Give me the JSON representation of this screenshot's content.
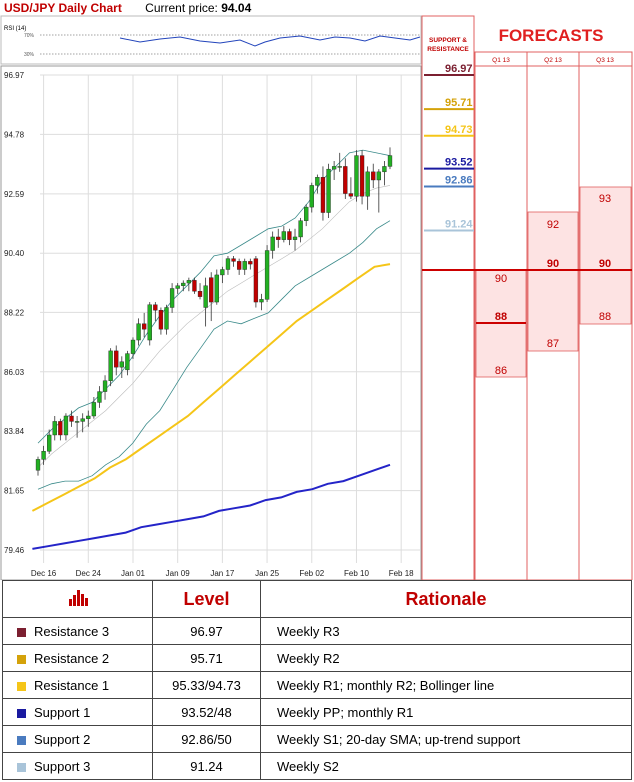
{
  "header": {
    "title": "USD/JPY Daily Chart",
    "price_label": "Current price:",
    "price_value": "94.04"
  },
  "rsi": {
    "label": "RSI (14)",
    "levels": [
      "70%",
      "30%"
    ]
  },
  "side": {
    "sr_heading": [
      "SUPPORT &",
      "RESISTANCE"
    ],
    "forecasts_heading": "FORECASTS",
    "quarters": [
      "Q1 13",
      "Q2 13",
      "Q3 13"
    ],
    "forecast_values": {
      "q1": [
        "90",
        "88",
        "86"
      ],
      "q2": [
        "92",
        "90",
        "87"
      ],
      "q3": [
        "93",
        "90",
        "88"
      ]
    }
  },
  "colors": {
    "accent_red": "#c00000",
    "r3": "#7b1f30",
    "r2": "#d4a20a",
    "r1": "#f5c518",
    "s1": "#1a1aa0",
    "s2": "#4a7bbf",
    "s3": "#a9c4d9",
    "bull": "#22b022",
    "bear": "#c00000",
    "sma_fast": "#f5c518",
    "sma_slow": "#2424c8",
    "bollinger": "#3a8a8a"
  },
  "chart_data": {
    "type": "candlestick",
    "title": "USD/JPY Daily Chart",
    "ylim": [
      79.46,
      96.97
    ],
    "y_ticks": [
      "96.97",
      "94.78",
      "92.59",
      "90.40",
      "88.22",
      "86.03",
      "83.84",
      "81.65",
      "79.46"
    ],
    "x_ticks": [
      "Dec 16",
      "Dec 24",
      "Jan 01",
      "Jan 09",
      "Jan 17",
      "Jan 25",
      "Feb 02",
      "Feb 10",
      "Feb 18"
    ],
    "x_tick_index": [
      1,
      9,
      17,
      25,
      33,
      41,
      49,
      57,
      65
    ],
    "candles": [
      {
        "o": 82.4,
        "h": 82.9,
        "l": 82.2,
        "c": 82.8
      },
      {
        "o": 82.8,
        "h": 83.3,
        "l": 82.6,
        "c": 83.1
      },
      {
        "o": 83.1,
        "h": 83.9,
        "l": 83.0,
        "c": 83.7
      },
      {
        "o": 83.7,
        "h": 84.4,
        "l": 83.5,
        "c": 84.2
      },
      {
        "o": 84.2,
        "h": 84.3,
        "l": 83.5,
        "c": 83.7
      },
      {
        "o": 83.7,
        "h": 84.5,
        "l": 83.5,
        "c": 84.4
      },
      {
        "o": 84.4,
        "h": 84.6,
        "l": 84.0,
        "c": 84.2
      },
      {
        "o": 84.2,
        "h": 84.4,
        "l": 83.6,
        "c": 84.2
      },
      {
        "o": 84.2,
        "h": 84.5,
        "l": 83.8,
        "c": 84.3
      },
      {
        "o": 84.3,
        "h": 84.6,
        "l": 84.0,
        "c": 84.4
      },
      {
        "o": 84.4,
        "h": 85.1,
        "l": 84.3,
        "c": 84.9
      },
      {
        "o": 84.9,
        "h": 85.5,
        "l": 84.7,
        "c": 85.3
      },
      {
        "o": 85.3,
        "h": 85.9,
        "l": 85.0,
        "c": 85.7
      },
      {
        "o": 85.7,
        "h": 86.9,
        "l": 85.5,
        "c": 86.8
      },
      {
        "o": 86.8,
        "h": 87.0,
        "l": 85.9,
        "c": 86.2
      },
      {
        "o": 86.2,
        "h": 86.6,
        "l": 85.8,
        "c": 86.4
      },
      {
        "o": 86.1,
        "h": 86.8,
        "l": 85.9,
        "c": 86.7
      },
      {
        "o": 86.7,
        "h": 87.3,
        "l": 86.5,
        "c": 87.2
      },
      {
        "o": 87.2,
        "h": 88.0,
        "l": 87.0,
        "c": 87.8
      },
      {
        "o": 87.8,
        "h": 88.2,
        "l": 87.3,
        "c": 87.6
      },
      {
        "o": 87.2,
        "h": 88.6,
        "l": 87.0,
        "c": 88.5
      },
      {
        "o": 88.5,
        "h": 88.6,
        "l": 87.9,
        "c": 88.3
      },
      {
        "o": 88.3,
        "h": 88.4,
        "l": 87.4,
        "c": 87.6
      },
      {
        "o": 87.6,
        "h": 88.5,
        "l": 87.4,
        "c": 88.4
      },
      {
        "o": 88.4,
        "h": 89.3,
        "l": 88.2,
        "c": 89.1
      },
      {
        "o": 89.1,
        "h": 89.3,
        "l": 88.9,
        "c": 89.2
      },
      {
        "o": 89.2,
        "h": 89.4,
        "l": 89.0,
        "c": 89.3
      },
      {
        "o": 89.3,
        "h": 89.5,
        "l": 89.0,
        "c": 89.4
      },
      {
        "o": 89.4,
        "h": 89.5,
        "l": 88.9,
        "c": 89.0
      },
      {
        "o": 89.0,
        "h": 89.3,
        "l": 88.7,
        "c": 88.8
      },
      {
        "o": 88.4,
        "h": 89.5,
        "l": 87.7,
        "c": 89.2
      },
      {
        "o": 89.5,
        "h": 89.7,
        "l": 87.9,
        "c": 88.6
      },
      {
        "o": 88.6,
        "h": 89.8,
        "l": 88.5,
        "c": 89.6
      },
      {
        "o": 89.6,
        "h": 89.9,
        "l": 89.3,
        "c": 89.8
      },
      {
        "o": 89.8,
        "h": 90.3,
        "l": 89.6,
        "c": 90.2
      },
      {
        "o": 90.2,
        "h": 90.3,
        "l": 89.9,
        "c": 90.1
      },
      {
        "o": 90.1,
        "h": 90.2,
        "l": 89.6,
        "c": 89.8
      },
      {
        "o": 89.8,
        "h": 90.2,
        "l": 89.6,
        "c": 90.1
      },
      {
        "o": 90.1,
        "h": 90.2,
        "l": 89.8,
        "c": 90.0
      },
      {
        "o": 90.2,
        "h": 90.3,
        "l": 88.4,
        "c": 88.6
      },
      {
        "o": 88.6,
        "h": 88.9,
        "l": 88.3,
        "c": 88.7
      },
      {
        "o": 88.7,
        "h": 90.7,
        "l": 88.6,
        "c": 90.5
      },
      {
        "o": 90.5,
        "h": 91.2,
        "l": 90.2,
        "c": 91.0
      },
      {
        "o": 91.0,
        "h": 91.3,
        "l": 90.6,
        "c": 90.9
      },
      {
        "o": 90.9,
        "h": 91.4,
        "l": 90.8,
        "c": 91.2
      },
      {
        "o": 91.2,
        "h": 91.3,
        "l": 90.7,
        "c": 90.9
      },
      {
        "o": 90.9,
        "h": 91.3,
        "l": 90.5,
        "c": 91.0
      },
      {
        "o": 91.0,
        "h": 91.7,
        "l": 90.8,
        "c": 91.6
      },
      {
        "o": 91.6,
        "h": 92.2,
        "l": 91.4,
        "c": 92.1
      },
      {
        "o": 92.1,
        "h": 93.0,
        "l": 91.9,
        "c": 92.9
      },
      {
        "o": 92.9,
        "h": 93.3,
        "l": 92.6,
        "c": 93.2
      },
      {
        "o": 93.2,
        "h": 93.6,
        "l": 91.6,
        "c": 91.9
      },
      {
        "o": 91.9,
        "h": 93.7,
        "l": 91.7,
        "c": 93.5
      },
      {
        "o": 93.5,
        "h": 93.8,
        "l": 93.1,
        "c": 93.6
      },
      {
        "o": 93.6,
        "h": 94.1,
        "l": 93.4,
        "c": 93.6
      },
      {
        "o": 93.6,
        "h": 93.9,
        "l": 92.4,
        "c": 92.6
      },
      {
        "o": 92.6,
        "h": 93.2,
        "l": 92.4,
        "c": 92.5
      },
      {
        "o": 92.5,
        "h": 94.2,
        "l": 92.3,
        "c": 94.0
      },
      {
        "o": 94.0,
        "h": 94.2,
        "l": 92.2,
        "c": 92.5
      },
      {
        "o": 92.5,
        "h": 93.6,
        "l": 92.0,
        "c": 93.4
      },
      {
        "o": 93.4,
        "h": 93.7,
        "l": 92.8,
        "c": 93.1
      },
      {
        "o": 93.1,
        "h": 93.5,
        "l": 91.9,
        "c": 93.4
      },
      {
        "o": 93.4,
        "h": 93.8,
        "l": 92.9,
        "c": 93.6
      },
      {
        "o": 93.6,
        "h": 94.3,
        "l": 93.5,
        "c": 94.0
      }
    ],
    "series": [
      {
        "name": "",
        "values": [
          80.9,
          81.2,
          81.5,
          81.8,
          82.1,
          82.5,
          82.8,
          83.2,
          83.6,
          84.0,
          84.4,
          84.9,
          85.4,
          85.9,
          86.4,
          86.9,
          87.4,
          87.9,
          88.3,
          88.7,
          89.1,
          89.5,
          89.9,
          90.0
        ]
      },
      {
        "name": "",
        "values": [
          79.5,
          79.6,
          79.7,
          79.8,
          79.9,
          80.0,
          80.1,
          80.3,
          80.4,
          80.5,
          80.6,
          80.7,
          80.9,
          81.0,
          81.1,
          81.3,
          81.4,
          81.6,
          81.7,
          81.9,
          82.0,
          82.2,
          82.4,
          82.6
        ]
      }
    ],
    "bollinger": {
      "upper": [
        83.4,
        83.9,
        84.3,
        84.7,
        84.9,
        85.4,
        85.9,
        86.6,
        87.4,
        88.1,
        88.7,
        89.2,
        89.7,
        90.3,
        90.4,
        90.7,
        91.0,
        91.3,
        91.4,
        91.7,
        92.3,
        93.1,
        93.6,
        94.1,
        94.2,
        94.1,
        94.0
      ],
      "middle": [
        82.5,
        83.0,
        83.4,
        83.8,
        84.2,
        84.6,
        85.1,
        85.6,
        86.2,
        86.8,
        87.3,
        87.8,
        88.2,
        88.6,
        89.0,
        89.3,
        89.6,
        89.9,
        90.2,
        90.5,
        90.9,
        91.3,
        91.8,
        92.3,
        92.6,
        92.8,
        92.9
      ],
      "lower": [
        81.7,
        81.9,
        82.0,
        82.0,
        82.2,
        82.6,
        82.9,
        83.4,
        84.1,
        84.6,
        85.4,
        86.2,
        86.9,
        87.6,
        87.9,
        87.8,
        88.0,
        88.2,
        88.7,
        89.2,
        89.5,
        89.8,
        90.1,
        90.4,
        90.8,
        91.3,
        91.6
      ]
    }
  },
  "levels_panel": [
    {
      "value": "96.97",
      "color": "#7b1f30"
    },
    {
      "value": "95.71",
      "color": "#d4a20a"
    },
    {
      "value": "94.73",
      "color": "#f5c518"
    },
    {
      "value": "93.52",
      "color": "#1a1aa0"
    },
    {
      "value": "92.86",
      "color": "#4a7bbf"
    },
    {
      "value": "91.24",
      "color": "#a9c4d9"
    }
  ],
  "table": {
    "headers": [
      "",
      "Level",
      "Rationale"
    ],
    "rows": [
      {
        "name": "Resistance 3",
        "level": "96.97",
        "rationale": "Weekly R3",
        "color": "#7b1f30"
      },
      {
        "name": "Resistance 2",
        "level": "95.71",
        "rationale": "Weekly R2",
        "color": "#d4a20a"
      },
      {
        "name": "Resistance 1",
        "level": "95.33/94.73",
        "rationale": "Weekly R1; monthly R2; Bollinger line",
        "color": "#f5c518"
      },
      {
        "name": "Support 1",
        "level": "93.52/48",
        "rationale": "Weekly PP; monthly R1",
        "color": "#1a1aa0"
      },
      {
        "name": "Support 2",
        "level": "92.86/50",
        "rationale": "Weekly S1; 20-day SMA; up-trend support",
        "color": "#4a7bbf"
      },
      {
        "name": "Support 3",
        "level": "91.24",
        "rationale": "Weekly S2",
        "color": "#a9c4d9"
      }
    ]
  }
}
